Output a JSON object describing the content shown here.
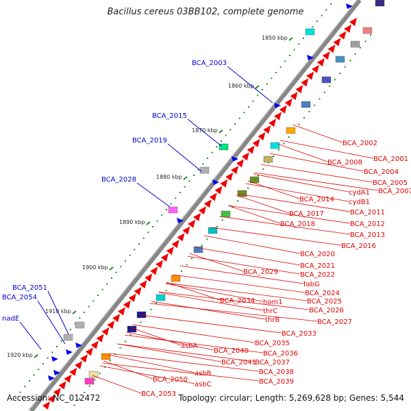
{
  "title": "Bacillus cereus 03BB102, complete genome",
  "footer": {
    "accession": "Accession: NC_012472",
    "summary": "Topology: circular; Length: 5,269,628 bp; Genes: 5,544"
  },
  "colors": {
    "forward_gene": "#0000ee",
    "reverse_gene": "#ee0000",
    "backbone": "#888888",
    "dots": "#1a8a1a",
    "label_forward": "#0000cc",
    "label_reverse": "#dd0000"
  },
  "ticks": [
    "1850 kbp",
    "1860 kbp",
    "1870 kbp",
    "1880 kbp",
    "1890 kbp",
    "1900 kbp",
    "1910 kbp",
    "1920 kbp"
  ],
  "labels_left": [
    "BCA_2003",
    "BCA_2015",
    "BCA_2019",
    "BCA_2028",
    "BCA_2051",
    "BCA_2054",
    "nadE"
  ],
  "labels_right": [
    "BCA_2002",
    "BCA_2001",
    "BCA_2008",
    "BCA_2004",
    "BCA_2005",
    "BCA_2007",
    "cydA1",
    "cydB1",
    "BCA_2014",
    "BCA_2011",
    "BCA_2017",
    "BCA_2012",
    "BCA_2018",
    "BCA_2013",
    "BCA_2016",
    "BCA_2020",
    "BCA_2021",
    "BCA_2029",
    "BCA_2022",
    "fabG",
    "BCA_2024",
    "BCA_2025",
    "BCA_2034",
    "hom1",
    "BCA_2026",
    "thrC",
    "thrB",
    "BCA_2027",
    "BCA_2033",
    "asbA",
    "BCA_2035",
    "BCA_2040",
    "BCA_2036",
    "BCA_2041",
    "BCA_2037",
    "asbB",
    "BCA_2038",
    "BCA_2050",
    "asbC",
    "BCA_2039",
    "BCA_2053"
  ]
}
